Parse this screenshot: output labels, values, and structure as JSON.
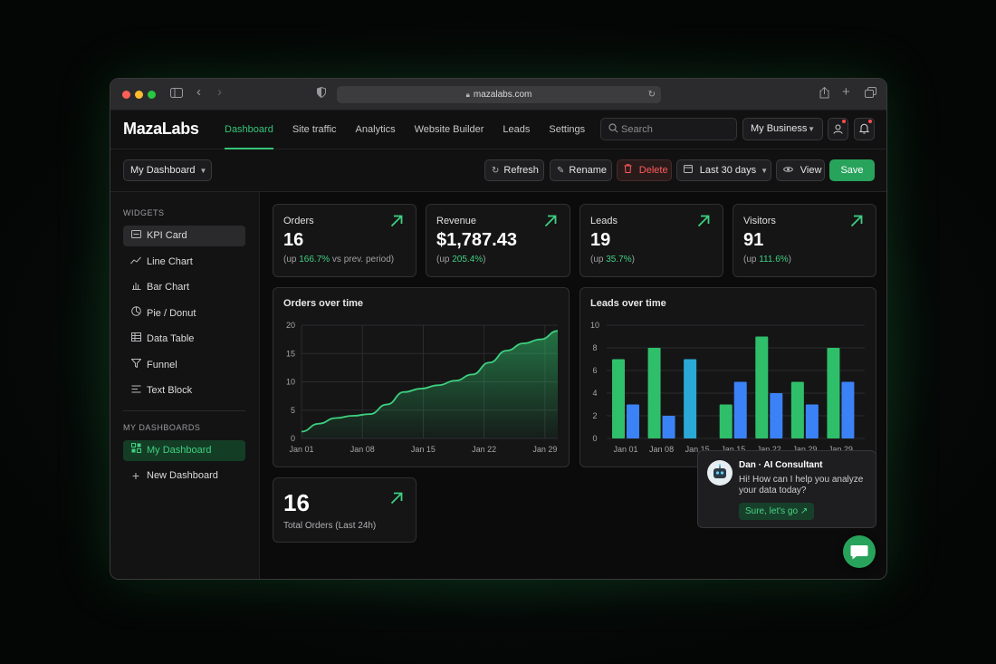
{
  "browser": {
    "url": "mazalabs.com",
    "traffic_lights": [
      "#ff5f57",
      "#febc2e",
      "#28c840"
    ],
    "icons": [
      "sidebar-toggle-icon",
      "back-icon",
      "forward-icon",
      "shield-icon",
      "lock-icon",
      "reload-icon",
      "share-icon",
      "new-tab-icon",
      "tabs-overview-icon"
    ]
  },
  "header": {
    "logo": "MazaLabs",
    "nav": [
      {
        "label": "Dashboard",
        "active": true
      },
      {
        "label": "Site traffic"
      },
      {
        "label": "Analytics"
      },
      {
        "label": "Website Builder"
      },
      {
        "label": "Leads"
      },
      {
        "label": "Settings"
      }
    ],
    "search_placeholder": "Search",
    "business_label": "My Business",
    "icons": [
      "user-icon",
      "bell-icon"
    ]
  },
  "toolbar": {
    "dashboard_select": "My Dashboard",
    "refresh_label": "Refresh",
    "rename_label": "Rename",
    "delete_label": "Delete",
    "range_label": "Last 30 days",
    "view_label": "View",
    "save_label": "Save"
  },
  "sidebar": {
    "widgets_heading": "WIDGETS",
    "widgets": [
      {
        "label": "KPI Card",
        "icon": "kpi-card-icon",
        "highlighted": true
      },
      {
        "label": "Line Chart",
        "icon": "line-chart-icon"
      },
      {
        "label": "Bar Chart",
        "icon": "bar-chart-icon"
      },
      {
        "label": "Pie / Donut",
        "icon": "pie-chart-icon"
      },
      {
        "label": "Data Table",
        "icon": "table-icon"
      },
      {
        "label": "Funnel",
        "icon": "funnel-icon"
      },
      {
        "label": "Text Block",
        "icon": "text-block-icon"
      }
    ],
    "dashboards_heading": "MY DASHBOARDS",
    "dashboards": [
      {
        "label": "My Dashboard",
        "icon": "dashboard-grid-icon",
        "active": true
      },
      {
        "label": "New Dashboard",
        "icon": "plus-icon"
      }
    ]
  },
  "kpis": [
    {
      "label": "Orders",
      "value": "16",
      "sub_prefix": "(up ",
      "sub_change": "166.7%",
      "sub_suffix": " vs prev. period)"
    },
    {
      "label": "Revenue",
      "value": "$1,787.43",
      "sub_prefix": "(up ",
      "sub_change": "205.4%",
      "sub_suffix": ")"
    },
    {
      "label": "Leads",
      "value": "19",
      "sub_prefix": "(up ",
      "sub_change": "35.7%",
      "sub_suffix": ")"
    },
    {
      "label": "Visitors",
      "value": "91",
      "sub_prefix": "(up ",
      "sub_change": "111.6%",
      "sub_suffix": ")"
    }
  ],
  "small_kpi": {
    "value": "16",
    "label": "Total Orders (Last 24h)"
  },
  "chat": {
    "name": "Dan · AI Consultant",
    "message": "Hi! How can I help you analyze your data today?",
    "cta": "Sure, let's go"
  },
  "colors": {
    "accent": "#35c476",
    "green_bar": "#2fbf6a",
    "blue_bar": "#3b82f6",
    "cyan_bar": "#2aa9d6"
  },
  "chart_data": [
    {
      "type": "area",
      "title": "Orders over time",
      "x": [
        "Jan 01",
        "Jan 03",
        "Jan 05",
        "Jan 07",
        "Jan 09",
        "Jan 11",
        "Jan 13",
        "Jan 15",
        "Jan 17",
        "Jan 19",
        "Jan 21",
        "Jan 23",
        "Jan 25",
        "Jan 27",
        "Jan 29",
        "Jan 31"
      ],
      "values": [
        1.2,
        2.6,
        3.6,
        4.0,
        4.3,
        6.0,
        8.2,
        8.8,
        9.4,
        10.2,
        11.3,
        13.4,
        15.5,
        16.8,
        17.5,
        19.0
      ],
      "xticks": [
        "Jan 01",
        "Jan 08",
        "Jan 15",
        "Jan 22",
        "Jan 29"
      ],
      "yticks": [
        0,
        5,
        10,
        15,
        20
      ],
      "ylim": [
        0,
        20
      ],
      "grid": true
    },
    {
      "type": "bar",
      "title": "Leads over time",
      "categories": [
        "Jan 01",
        "Jan 08",
        "Jan 15",
        "Jan 15",
        "Jan 22",
        "Jan 29",
        "Jan 29"
      ],
      "series": [
        {
          "values": [
            7,
            8,
            7,
            3,
            9,
            5,
            8
          ],
          "colors": [
            "#2fbf6a",
            "#2fbf6a",
            "#2aa9d6",
            "#2fbf6a",
            "#2fbf6a",
            "#2fbf6a",
            "#2fbf6a"
          ]
        },
        {
          "values": [
            3,
            2,
            null,
            5,
            4,
            3,
            5
          ],
          "colors": [
            "#3b82f6",
            "#3b82f6",
            "#3b82f6",
            "#3b82f6",
            "#3b82f6",
            "#3b82f6",
            "#3b82f6"
          ]
        }
      ],
      "yticks": [
        0,
        2,
        4,
        6,
        8,
        10
      ],
      "ylim": [
        0,
        10
      ],
      "grid": true
    }
  ]
}
